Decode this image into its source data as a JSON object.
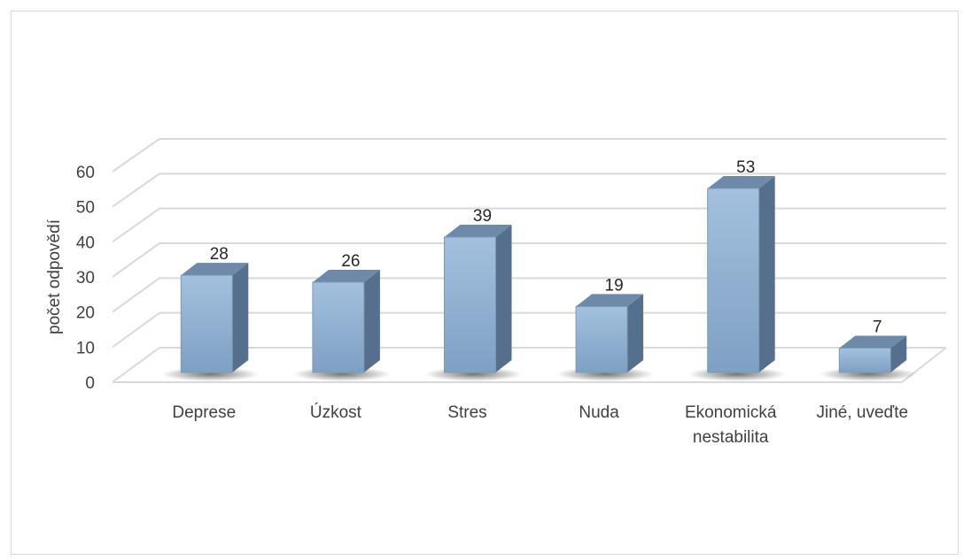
{
  "chart_data": {
    "type": "bar",
    "categories": [
      "Deprese",
      "Úzkost",
      "Stres",
      "Nuda",
      [
        "Ekonomická",
        "nestabilita"
      ],
      "Jiné, uveďte"
    ],
    "values": [
      28,
      26,
      39,
      19,
      53,
      7
    ],
    "title": "",
    "xlabel": "",
    "ylabel": "počet odpovědí",
    "ylim": [
      0,
      60
    ],
    "yticks": [
      0,
      10,
      20,
      30,
      40,
      50,
      60
    ],
    "grid": true,
    "legend": "none",
    "style": "3d-column",
    "colors": {
      "bar_front": "#93b3d6",
      "bar_top": "#6f8aa8",
      "bar_side": "#556f8c",
      "gridline": "#d9d9d9"
    }
  }
}
